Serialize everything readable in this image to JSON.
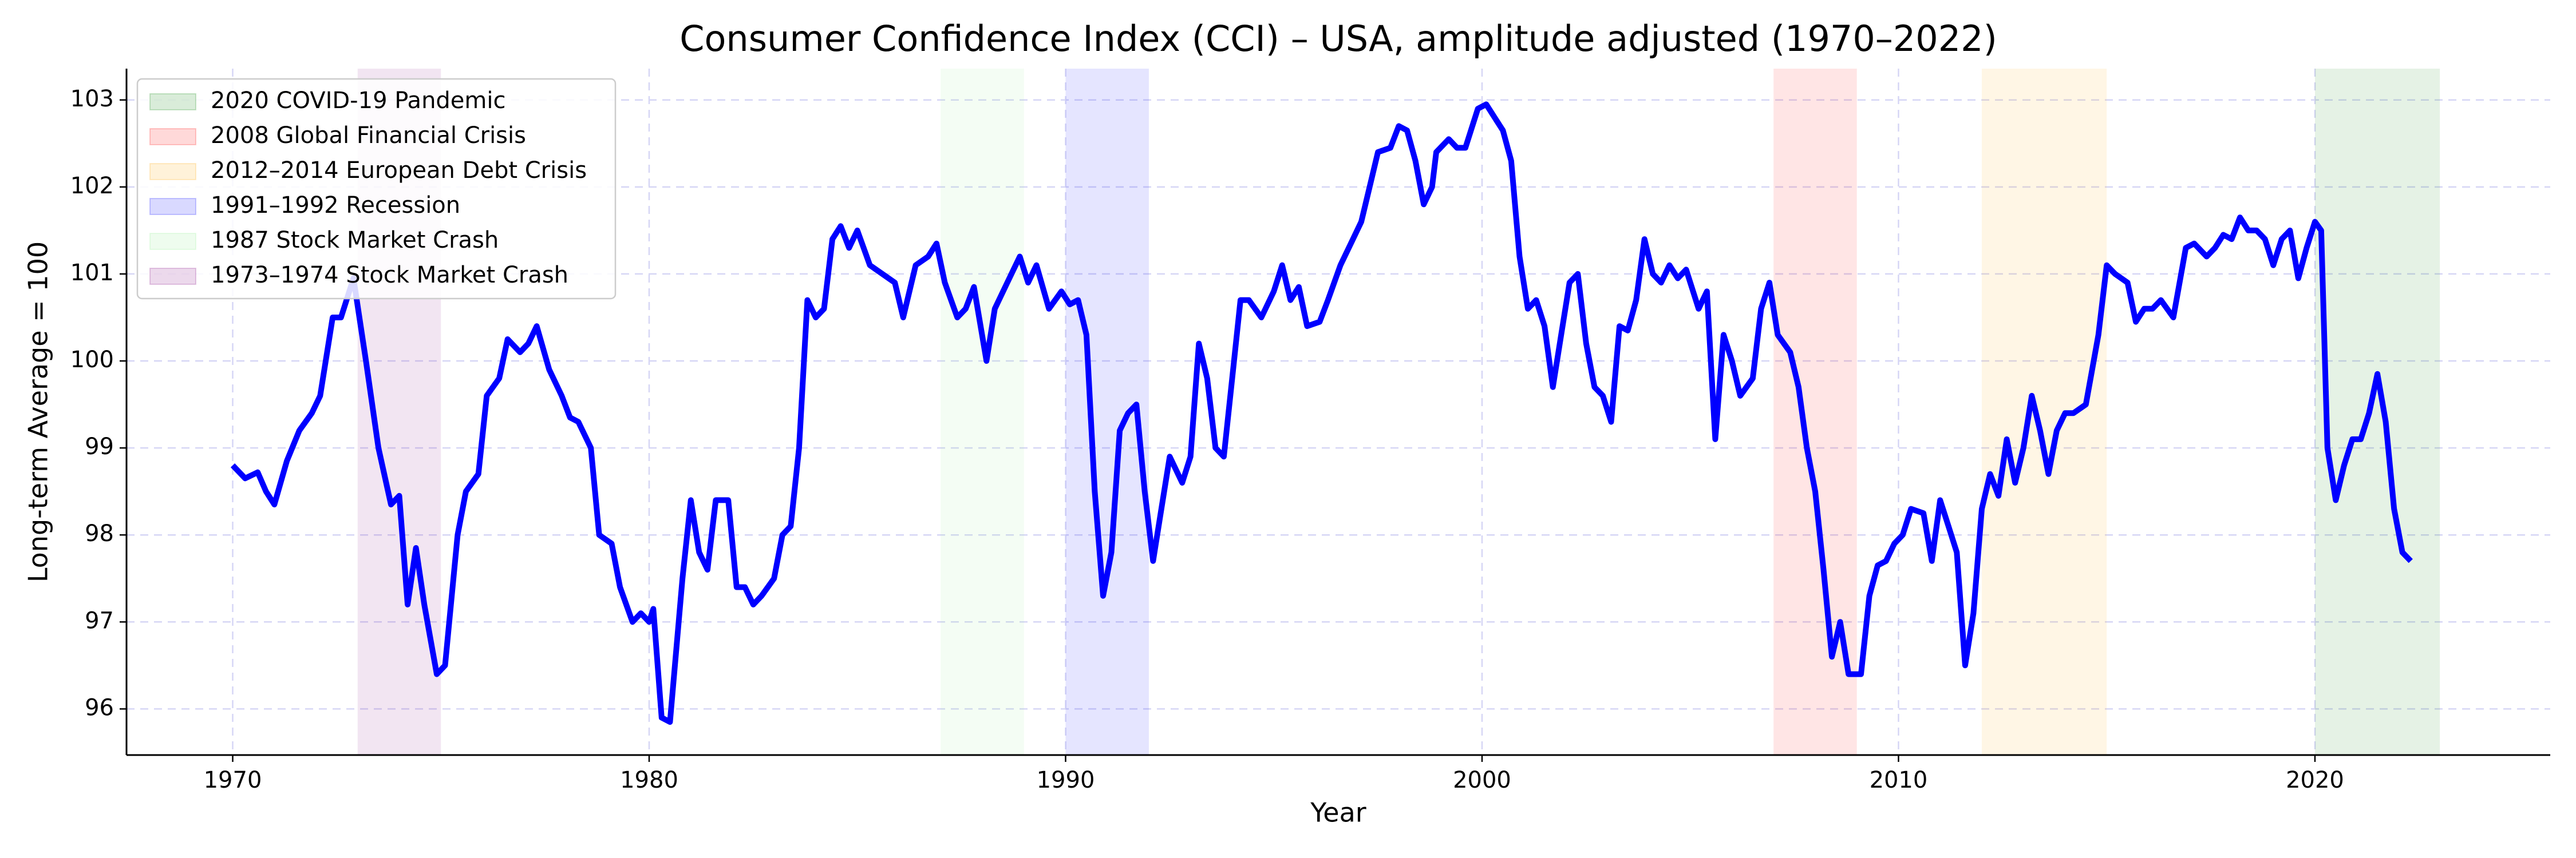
{
  "chart_data": {
    "type": "line",
    "title": "Consumer Confidence Index (CCI) – USA, amplitude adjusted (1970–2022)",
    "x_label": "Year",
    "y_label": "Long-term Average = 100",
    "xlim": [
      1967.45,
      2025.65
    ],
    "ylim": [
      95.47,
      103.36
    ],
    "xticks": [
      1970,
      1980,
      1990,
      2000,
      2010,
      2020
    ],
    "yticks": [
      96,
      97,
      98,
      99,
      100,
      101,
      102,
      103
    ],
    "grid": true,
    "legend": "upper left",
    "spans": [
      {
        "name": "2020 COVID-19 Pandemic",
        "start": 2020,
        "end": 2023,
        "color": "#008000"
      },
      {
        "name": "2008 Global Financial Crisis",
        "start": 2007,
        "end": 2009,
        "color": "#ff0000"
      },
      {
        "name": "2012–2014 European Debt Crisis",
        "start": 2012,
        "end": 2015,
        "color": "#ffa500"
      },
      {
        "name": "1991–1992 Recession",
        "start": 1990,
        "end": 1992,
        "color": "#0000ff"
      },
      {
        "name": "1987 Stock Market Crash",
        "start": 1987,
        "end": 1989,
        "color": "#90ee90"
      },
      {
        "name": "1973–1974 Stock Market Crash",
        "start": 1973,
        "end": 1975,
        "color": "#800080"
      }
    ],
    "x": [
      1970.0,
      1970.3,
      1970.6,
      1970.8,
      1971.0,
      1971.3,
      1971.6,
      1971.9,
      1972.1,
      1972.4,
      1972.6,
      1972.9,
      1973.2,
      1973.5,
      1973.8,
      1974.0,
      1974.2,
      1974.4,
      1974.6,
      1974.9,
      1975.1,
      1975.4,
      1975.6,
      1975.9,
      1976.1,
      1976.4,
      1976.6,
      1976.9,
      1977.1,
      1977.3,
      1977.6,
      1977.9,
      1978.1,
      1978.3,
      1978.6,
      1978.8,
      1979.1,
      1979.3,
      1979.6,
      1979.8,
      1980.0,
      1980.1,
      1980.3,
      1980.5,
      1980.8,
      1981.0,
      1981.2,
      1981.4,
      1981.6,
      1981.9,
      1982.1,
      1982.3,
      1982.5,
      1982.7,
      1983.0,
      1983.2,
      1983.4,
      1983.6,
      1983.8,
      1984.0,
      1984.2,
      1984.4,
      1984.6,
      1984.8,
      1985.0,
      1985.3,
      1985.6,
      1985.9,
      1986.1,
      1986.4,
      1986.7,
      1986.9,
      1987.1,
      1987.4,
      1987.6,
      1987.8,
      1988.1,
      1988.3,
      1988.6,
      1988.9,
      1989.1,
      1989.3,
      1989.6,
      1989.9,
      1990.1,
      1990.3,
      1990.5,
      1990.7,
      1990.9,
      1991.1,
      1991.3,
      1991.5,
      1991.7,
      1991.9,
      1992.1,
      1992.3,
      1992.5,
      1992.8,
      1993.0,
      1993.2,
      1993.4,
      1993.6,
      1993.8,
      1994.0,
      1994.2,
      1994.4,
      1994.7,
      1995.0,
      1995.2,
      1995.4,
      1995.6,
      1995.8,
      1996.1,
      1996.3,
      1996.6,
      1996.9,
      1997.1,
      1997.3,
      1997.5,
      1997.8,
      1998.0,
      1998.2,
      1998.4,
      1998.6,
      1998.8,
      1998.9,
      1999.2,
      1999.4,
      1999.6,
      1999.9,
      2000.1,
      2000.3,
      2000.5,
      2000.7,
      2000.9,
      2001.1,
      2001.3,
      2001.5,
      2001.7,
      2001.9,
      2002.1,
      2002.3,
      2002.5,
      2002.7,
      2002.9,
      2003.1,
      2003.3,
      2003.5,
      2003.7,
      2003.9,
      2004.1,
      2004.3,
      2004.5,
      2004.7,
      2004.9,
      2005.2,
      2005.4,
      2005.6,
      2005.8,
      2006.0,
      2006.2,
      2006.5,
      2006.7,
      2006.9,
      2007.1,
      2007.4,
      2007.6,
      2007.8,
      2008.0,
      2008.2,
      2008.4,
      2008.6,
      2008.8,
      2009.1,
      2009.3,
      2009.5,
      2009.7,
      2009.9,
      2010.1,
      2010.3,
      2010.6,
      2010.8,
      2011.0,
      2011.2,
      2011.4,
      2011.6,
      2011.8,
      2012.0,
      2012.2,
      2012.4,
      2012.6,
      2012.8,
      2013.0,
      2013.2,
      2013.4,
      2013.6,
      2013.8,
      2014.0,
      2014.2,
      2014.5,
      2014.8,
      2015.0,
      2015.2,
      2015.5,
      2015.7,
      2015.9,
      2016.1,
      2016.3,
      2016.6,
      2016.9,
      2017.1,
      2017.4,
      2017.6,
      2017.8,
      2018.0,
      2018.2,
      2018.4,
      2018.6,
      2018.8,
      2019.0,
      2019.2,
      2019.4,
      2019.6,
      2019.8,
      2020.0,
      2020.15,
      2020.3,
      2020.5,
      2020.7,
      2020.9,
      2021.1,
      2021.3,
      2021.5,
      2021.7,
      2021.9,
      2022.1,
      2022.3
    ],
    "series": [
      {
        "name": "CCI",
        "color": "#0000ff",
        "values": [
          98.8,
          98.65,
          98.72,
          98.5,
          98.35,
          98.85,
          99.2,
          99.4,
          99.6,
          100.5,
          100.5,
          100.95,
          100.0,
          99.0,
          98.35,
          98.45,
          97.2,
          97.85,
          97.2,
          96.4,
          96.5,
          98.0,
          98.5,
          98.7,
          99.6,
          99.8,
          100.25,
          100.1,
          100.2,
          100.4,
          99.9,
          99.6,
          99.35,
          99.3,
          99.0,
          98.0,
          97.9,
          97.4,
          97.0,
          97.1,
          97.0,
          97.15,
          95.9,
          95.85,
          97.5,
          98.4,
          97.8,
          97.6,
          98.4,
          98.4,
          97.4,
          97.4,
          97.2,
          97.3,
          97.5,
          98.0,
          98.1,
          99.0,
          100.7,
          100.5,
          100.6,
          101.4,
          101.55,
          101.3,
          101.5,
          101.1,
          101.0,
          100.9,
          100.5,
          101.1,
          101.2,
          101.35,
          100.9,
          100.5,
          100.6,
          100.85,
          100.0,
          100.6,
          100.9,
          101.2,
          100.9,
          101.1,
          100.6,
          100.8,
          100.65,
          100.7,
          100.3,
          98.5,
          97.3,
          97.8,
          99.2,
          99.4,
          99.5,
          98.5,
          97.7,
          98.3,
          98.9,
          98.6,
          98.9,
          100.2,
          99.8,
          99.0,
          98.9,
          99.8,
          100.7,
          100.7,
          100.5,
          100.8,
          101.1,
          100.7,
          100.85,
          100.4,
          100.45,
          100.7,
          101.1,
          101.4,
          101.6,
          102.0,
          102.4,
          102.45,
          102.7,
          102.65,
          102.3,
          101.8,
          102.0,
          102.4,
          102.55,
          102.45,
          102.45,
          102.9,
          102.95,
          102.8,
          102.65,
          102.3,
          101.2,
          100.6,
          100.7,
          100.4,
          99.7,
          100.3,
          100.9,
          101.0,
          100.2,
          99.7,
          99.6,
          99.3,
          100.4,
          100.35,
          100.7,
          101.4,
          101.0,
          100.9,
          101.1,
          100.95,
          101.05,
          100.6,
          100.8,
          99.1,
          100.3,
          100.0,
          99.6,
          99.8,
          100.6,
          100.9,
          100.3,
          100.1,
          99.7,
          99.0,
          98.5,
          97.6,
          96.6,
          97.0,
          96.4,
          96.4,
          97.3,
          97.65,
          97.7,
          97.9,
          98.0,
          98.3,
          98.25,
          97.7,
          98.4,
          98.1,
          97.8,
          96.5,
          97.1,
          98.3,
          98.7,
          98.45,
          99.1,
          98.6,
          99.0,
          99.6,
          99.2,
          98.7,
          99.2,
          99.4,
          99.4,
          99.5,
          100.3,
          101.1,
          101.0,
          100.9,
          100.45,
          100.6,
          100.6,
          100.7,
          100.5,
          101.3,
          101.35,
          101.2,
          101.3,
          101.45,
          101.4,
          101.65,
          101.5,
          101.5,
          101.4,
          101.1,
          101.4,
          101.5,
          100.95,
          101.3,
          101.6,
          101.5,
          99.0,
          98.4,
          98.8,
          99.1,
          99.1,
          99.4,
          99.85,
          99.3,
          98.3,
          97.8,
          97.7
        ]
      }
    ]
  }
}
